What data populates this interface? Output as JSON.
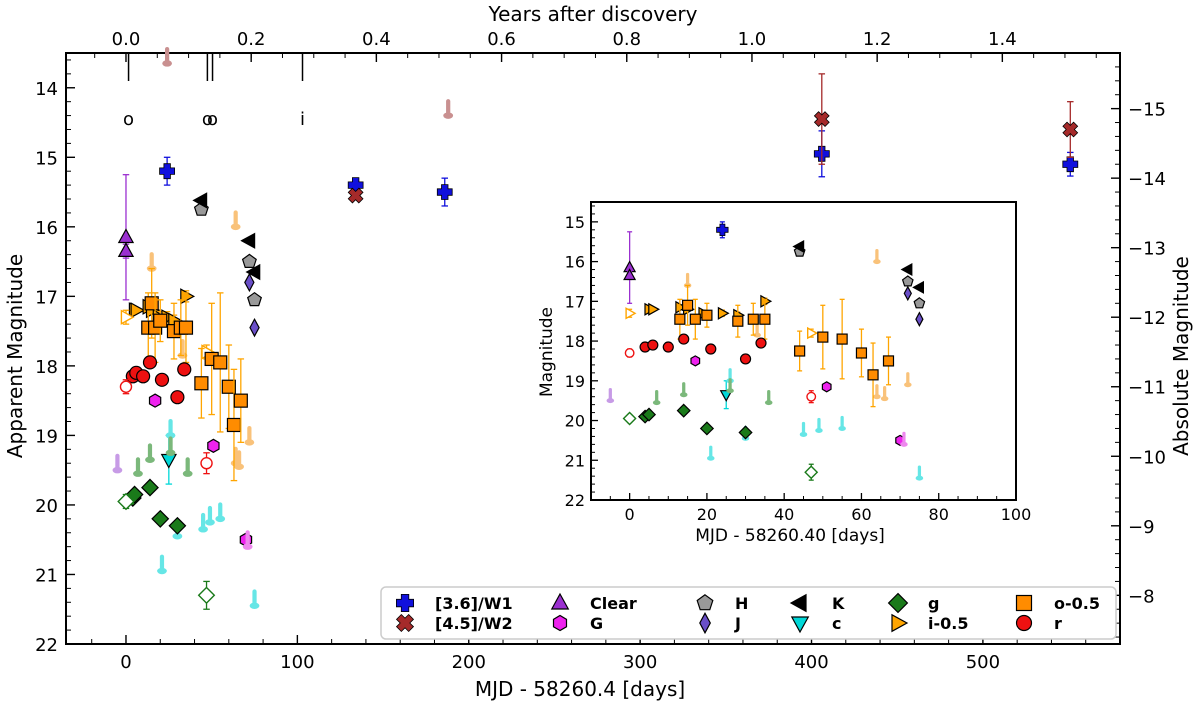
{
  "chart_data": {
    "type": "scatter",
    "main": {
      "xlabel": "MJD - 58260.4 [days]",
      "ylabel": "Apparent Magnitude",
      "ylabel_right": "Absolute Magnitude",
      "xlabel_top": "Years after discovery",
      "xlim": [
        -35,
        580
      ],
      "ylim": [
        22,
        13.5
      ],
      "xticks": [
        0,
        100,
        200,
        300,
        400,
        500
      ],
      "yticks": [
        14,
        15,
        16,
        17,
        18,
        19,
        20,
        21,
        22
      ],
      "top_ticks": [
        0.0,
        0.2,
        0.4,
        0.6,
        0.8,
        1.0,
        1.2,
        1.4
      ],
      "top_tick_labels": [
        "0.0",
        "0.2",
        "0.4",
        "0.6",
        "0.8",
        "1.0",
        "1.2",
        "1.4"
      ],
      "right_ticks": [
        -15,
        -14,
        -13,
        -12,
        -11,
        -10,
        -9,
        -8
      ],
      "right_tick_labels": [
        "−15",
        "−14",
        "−13",
        "−12",
        "−11",
        "−10",
        "−9",
        "−8"
      ],
      "distance_modulus": 29.3,
      "days_per_year": 365.25
    },
    "inset": {
      "xlabel": "MJD - 58260.40 [days]",
      "ylabel": "Magnitude",
      "xlim": [
        -10,
        100
      ],
      "ylim": [
        22,
        14.5
      ],
      "xticks": [
        0,
        20,
        40,
        60,
        80,
        100
      ],
      "yticks": [
        15,
        16,
        17,
        18,
        19,
        20,
        21,
        22
      ]
    },
    "spectra_epochs": [
      {
        "x": 1.5,
        "label": "o"
      },
      {
        "x": 47.5,
        "label": "o"
      },
      {
        "x": 50.5,
        "label": "o"
      },
      {
        "x": 103,
        "label": "i"
      }
    ],
    "legend": [
      {
        "key": "W1",
        "label": "[3.6]/W1",
        "color": "#1010dd",
        "marker": "plus"
      },
      {
        "key": "W2",
        "label": "[4.5]/W2",
        "color": "#a52a2a",
        "marker": "x"
      },
      {
        "key": "Clear",
        "label": "Clear",
        "color": "#9b30d0",
        "marker": "triangle-up"
      },
      {
        "key": "G",
        "label": "G",
        "color": "#ee22ee",
        "marker": "hexagon"
      },
      {
        "key": "H",
        "label": "H",
        "color": "#999999",
        "marker": "pentagon"
      },
      {
        "key": "J",
        "label": "J",
        "color": "#6a4fc8",
        "marker": "diamond-thin"
      },
      {
        "key": "K",
        "label": "K",
        "color": "#000000",
        "marker": "triangle-left"
      },
      {
        "key": "c",
        "label": "c",
        "color": "#00d8d8",
        "marker": "triangle-down"
      },
      {
        "key": "g",
        "label": "g",
        "color": "#1a7a1a",
        "marker": "diamond"
      },
      {
        "key": "i",
        "label": "i-0.5",
        "color": "#ffa500",
        "marker": "triangle-right"
      },
      {
        "key": "o",
        "label": "o-0.5",
        "color": "#ff8c00",
        "marker": "square"
      },
      {
        "key": "r",
        "label": "r",
        "color": "#ee1111",
        "marker": "circle"
      }
    ],
    "series": [
      {
        "name": "[3.6]/W1",
        "color": "#1010dd",
        "marker": "plus",
        "points": [
          [
            24,
            15.2,
            0.2
          ],
          [
            134,
            15.4,
            0.1
          ],
          [
            186,
            15.5,
            0.2
          ],
          [
            406,
            14.95,
            0.33
          ],
          [
            551,
            15.1,
            0.17
          ]
        ]
      },
      {
        "name": "[4.5]/W2",
        "color": "#a52a2a",
        "marker": "x",
        "points": [
          [
            134,
            15.55,
            0.05
          ],
          [
            406,
            14.45,
            0.65
          ],
          [
            551,
            14.6,
            0.4
          ]
        ]
      },
      {
        "name": "[4.5]/W2 upper limits",
        "color": "#c99090",
        "marker": "limit",
        "points": [
          [
            24,
            13.65
          ],
          [
            188,
            14.4
          ]
        ]
      },
      {
        "name": "Clear",
        "color": "#9b30d0",
        "marker": "triangle-up",
        "points": [
          [
            0,
            16.15,
            0.9
          ],
          [
            0,
            16.35,
            0.1
          ]
        ]
      },
      {
        "name": "Clear upper limits",
        "color": "#c79be6",
        "marker": "limit",
        "points": [
          [
            -5,
            19.5
          ]
        ]
      },
      {
        "name": "G",
        "color": "#ee22ee",
        "marker": "hexagon",
        "points": [
          [
            17,
            18.5,
            0.06
          ],
          [
            51,
            19.15,
            0.06
          ],
          [
            70,
            20.5,
            0.05
          ]
        ]
      },
      {
        "name": "G upper limits",
        "color": "#ee88ee",
        "marker": "limit",
        "points": [
          [
            71,
            20.6
          ]
        ]
      },
      {
        "name": "H",
        "color": "#999999",
        "marker": "pentagon",
        "points": [
          [
            44,
            15.75,
            0.04
          ],
          [
            72,
            16.5,
            0.04
          ],
          [
            75,
            17.05,
            0.04
          ]
        ]
      },
      {
        "name": "J",
        "color": "#6a4fc8",
        "marker": "diamond-thin",
        "points": [
          [
            72,
            16.8,
            0.05
          ],
          [
            75,
            17.45,
            0.05
          ]
        ]
      },
      {
        "name": "K",
        "color": "#000000",
        "marker": "triangle-left",
        "points": [
          [
            44,
            15.62,
            0.03
          ],
          [
            72,
            16.2,
            0.04
          ],
          [
            75,
            16.65,
            0.04
          ]
        ]
      },
      {
        "name": "c",
        "color": "#00d8d8",
        "marker": "triangle-down",
        "points": [
          [
            25,
            19.35,
            0.35
          ]
        ]
      },
      {
        "name": "c upper limits",
        "color": "#66e6e6",
        "marker": "limit",
        "points": [
          [
            21,
            20.95
          ],
          [
            26,
            19.0
          ],
          [
            30,
            20.45
          ],
          [
            45,
            20.35
          ],
          [
            49,
            20.25
          ],
          [
            55,
            20.2
          ],
          [
            75,
            21.45
          ]
        ]
      },
      {
        "name": "g",
        "color": "#1a7a1a",
        "marker": "diamond",
        "points": [
          [
            4,
            19.9,
            0.05
          ],
          [
            5,
            19.85,
            0.05
          ],
          [
            14,
            19.75,
            0.05
          ],
          [
            20,
            20.2,
            0.05
          ],
          [
            30,
            20.3,
            0.05
          ]
        ]
      },
      {
        "name": "g open",
        "color": "#1a7a1a",
        "marker": "diamond-open",
        "points": [
          [
            0,
            19.95,
            0.1
          ],
          [
            47,
            21.3,
            0.2
          ]
        ]
      },
      {
        "name": "g upper limits",
        "color": "#7bb87b",
        "marker": "limit",
        "points": [
          [
            7,
            19.55
          ],
          [
            14,
            19.35
          ],
          [
            26,
            19.25
          ],
          [
            36,
            19.55
          ]
        ]
      },
      {
        "name": "i-0.5",
        "color": "#ffa500",
        "marker": "triangle-right",
        "points": [
          [
            5,
            17.2,
            0.05
          ],
          [
            6,
            17.2,
            0.05
          ],
          [
            13,
            17.15,
            0.06
          ],
          [
            15,
            17.2,
            0.06
          ],
          [
            19,
            17.3,
            0.08
          ],
          [
            24,
            17.3,
            0.08
          ],
          [
            28,
            17.35,
            0.08
          ],
          [
            35,
            17.0,
            0.08
          ]
        ]
      },
      {
        "name": "i-0.5 open",
        "color": "#ffa500",
        "marker": "triangle-right-open",
        "points": [
          [
            0,
            17.3,
            0.1
          ],
          [
            47,
            17.8,
            0.1
          ]
        ]
      },
      {
        "name": "i-0.5 upper limits",
        "color": "#f9c27a",
        "marker": "limit",
        "points": [
          [
            15,
            16.6
          ],
          [
            33,
            17.85
          ],
          [
            64,
            16.0
          ],
          [
            64,
            19.4
          ],
          [
            66,
            19.45
          ],
          [
            72,
            19.1
          ]
        ]
      },
      {
        "name": "o-0.5",
        "color": "#ff8c00",
        "marker": "square",
        "points": [
          [
            13,
            17.45,
            0.5
          ],
          [
            15,
            17.1,
            0.5
          ],
          [
            17,
            17.45,
            0.5
          ],
          [
            20,
            17.35,
            0.3
          ],
          [
            28,
            17.5,
            0.4
          ],
          [
            32,
            17.45,
            0.4
          ],
          [
            35,
            17.45,
            0.5
          ],
          [
            44,
            18.25,
            0.5
          ],
          [
            50,
            17.9,
            0.8
          ],
          [
            55,
            17.95,
            1.0
          ],
          [
            60,
            18.3,
            0.6
          ],
          [
            63,
            18.85,
            0.8
          ],
          [
            67,
            18.5,
            0.6
          ]
        ]
      },
      {
        "name": "r",
        "color": "#ee1111",
        "marker": "circle",
        "points": [
          [
            4,
            18.15,
            0.05
          ],
          [
            6,
            18.1,
            0.05
          ],
          [
            10,
            18.15,
            0.05
          ],
          [
            14,
            17.95,
            0.05
          ],
          [
            21,
            18.2,
            0.05
          ],
          [
            30,
            18.45,
            0.05
          ],
          [
            34,
            18.05,
            0.05
          ]
        ]
      },
      {
        "name": "r open",
        "color": "#ee1111",
        "marker": "circle-open",
        "points": [
          [
            0,
            18.3,
            0.1
          ],
          [
            47,
            19.4,
            0.15
          ]
        ]
      }
    ]
  }
}
